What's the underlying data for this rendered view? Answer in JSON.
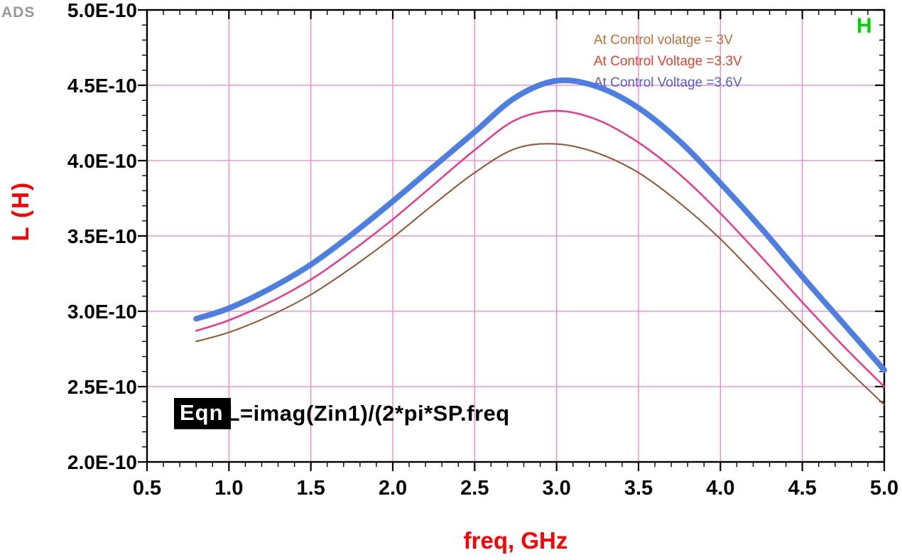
{
  "logo": "ADS",
  "plot_marker": "H",
  "colors": {
    "grid": "#fb7ec4",
    "axis": "#000000",
    "marker_green": "#00d300",
    "axis_label_red": "#ff0000"
  },
  "legend": [
    {
      "label": "At Control volatge = 3V",
      "color": "#bf6f3a"
    },
    {
      "label": "At Control Voltage =3.3V",
      "color": "#e8402e"
    },
    {
      "label": "At Control Voltage =3.6V",
      "color": "#5b5bd8"
    }
  ],
  "equation": {
    "tag": "Eqn",
    "text": "L=imag(Zin1)/(2*pi*SP.freq"
  },
  "chart_data": {
    "type": "line",
    "title": "",
    "xlabel": "freq, GHz",
    "ylabel": "L  (H)",
    "xlim": [
      0.5,
      5.0
    ],
    "ylim_scaled_1e10": [
      2.0,
      5.0
    ],
    "ylim": [
      2e-10,
      5e-10
    ],
    "grid": true,
    "x_ticks": [
      0.5,
      1.0,
      1.5,
      2.0,
      2.5,
      3.0,
      3.5,
      4.0,
      4.5,
      5.0
    ],
    "x_tick_labels": [
      "0.5",
      "1.0",
      "1.5",
      "2.0",
      "2.5",
      "3.0",
      "3.5",
      "4.0",
      "4.5",
      "5.0"
    ],
    "y_ticks_scaled_1e10": [
      2.0,
      2.5,
      3.0,
      3.5,
      4.0,
      4.5,
      5.0
    ],
    "y_tick_labels": [
      "2.0E-10",
      "2.5E-10",
      "3.0E-10",
      "3.5E-10",
      "4.0E-10",
      "4.5E-10",
      "5.0E-10"
    ],
    "x_minor_step": 0.1,
    "y_minor_step_scaled_1e10": 0.1,
    "x": [
      0.8,
      1.0,
      1.25,
      1.5,
      1.75,
      2.0,
      2.25,
      2.5,
      2.75,
      3.0,
      3.25,
      3.5,
      3.75,
      4.0,
      4.25,
      4.5,
      4.75,
      5.0
    ],
    "series": [
      {
        "name": "At Control volatge = 3V",
        "color": "#96522a",
        "stroke_width": 2,
        "values": [
          2.8e-10,
          2.86e-10,
          2.97e-10,
          3.11e-10,
          3.29e-10,
          3.49e-10,
          3.71e-10,
          3.92e-10,
          4.08e-10,
          4.11e-10,
          4.05e-10,
          3.92e-10,
          3.72e-10,
          3.48e-10,
          3.2e-10,
          2.92e-10,
          2.64e-10,
          2.38e-10
        ]
      },
      {
        "name": "At Control Voltage =3.3V",
        "color": "#f0368c",
        "stroke_width": 2.5,
        "values": [
          2.87e-10,
          2.94e-10,
          3.06e-10,
          3.21e-10,
          3.4e-10,
          3.61e-10,
          3.84e-10,
          4.07e-10,
          4.27e-10,
          4.33e-10,
          4.27e-10,
          4.12e-10,
          3.91e-10,
          3.65e-10,
          3.36e-10,
          3.06e-10,
          2.77e-10,
          2.5e-10
        ]
      },
      {
        "name": "At Control Voltage =3.6V",
        "color": "#4d7fe3",
        "stroke_width": 8,
        "values": [
          2.95e-10,
          3.02e-10,
          3.15e-10,
          3.31e-10,
          3.51e-10,
          3.73e-10,
          3.96e-10,
          4.19e-10,
          4.42e-10,
          4.53e-10,
          4.49e-10,
          4.35e-10,
          4.13e-10,
          3.85e-10,
          3.55e-10,
          3.23e-10,
          2.92e-10,
          2.61e-10
        ]
      }
    ],
    "legend_position": "top-right-inside",
    "annotation": "EqnL=imag(Zin1)/(2*pi*SP.freq"
  }
}
